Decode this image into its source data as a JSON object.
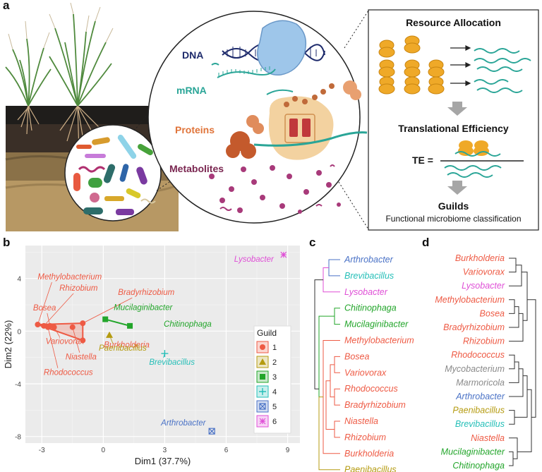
{
  "panels": {
    "a": "a",
    "b": "b",
    "c": "c",
    "d": "d"
  },
  "mechanism": {
    "dna": "DNA",
    "mrna": "mRNA",
    "proteins": "Proteins",
    "metabolites": "Metabolites"
  },
  "workflow": {
    "resource_allocation": "Resource Allocation",
    "translational_efficiency": "Translational Efficiency",
    "te_label": "TE =",
    "guilds": "Guilds",
    "guilds_subtitle": "Functional microbiome classification"
  },
  "colors": {
    "guild1": "#ee5a44",
    "guild2": "#b59b10",
    "guild3": "#22a52a",
    "guild4": "#25bfb8",
    "guild5": "#4a72c6",
    "guild6": "#df4fd6",
    "grey": "#8a8a8a",
    "dna": "#1d2a6b",
    "mrna": "#2aa597",
    "proteins": "#e0743a",
    "metabolites": "#7a2650"
  },
  "chart_data": {
    "type": "scatter",
    "xlabel": "Dim1 (37.7%)",
    "ylabel": "Dim2 (22%)",
    "xticks": [
      "-3",
      "0",
      "3",
      "6",
      "9"
    ],
    "yticks": [
      "4",
      "0",
      "-4",
      "-8"
    ],
    "xlim": [
      -3.8,
      9.6
    ],
    "ylim": [
      -8.5,
      6.5
    ],
    "legend_title": "Guild",
    "legend_position": "bottom-right",
    "grid": true,
    "guilds": [
      "1",
      "2",
      "3",
      "4",
      "5",
      "6"
    ],
    "points": [
      {
        "label": "Methylobacterium",
        "guild": 1,
        "x": -3.2,
        "y": 0.5
      },
      {
        "label": "Rhizobium",
        "guild": 1,
        "x": -2.9,
        "y": 0.4
      },
      {
        "label": "Bradyrhizobium",
        "guild": 1,
        "x": -1.0,
        "y": 0.6
      },
      {
        "label": "Bosea",
        "guild": 1,
        "x": -2.6,
        "y": 0.4
      },
      {
        "label": "Variovorax",
        "guild": 1,
        "x": -2.4,
        "y": 0.3
      },
      {
        "label": "Niastella",
        "guild": 1,
        "x": -1.5,
        "y": 0.3
      },
      {
        "label": "Rhodococcus",
        "guild": 1,
        "x": -2.7,
        "y": 0.3
      },
      {
        "label": "Burkholderia",
        "guild": 1,
        "x": -1.0,
        "y": -0.7
      },
      {
        "label": "Paenibacillus",
        "guild": 2,
        "x": 0.3,
        "y": -0.3
      },
      {
        "label": "Mucilaginibacter",
        "guild": 3,
        "x": 0.1,
        "y": 0.9
      },
      {
        "label": "Chitinophaga",
        "guild": 3,
        "x": 1.3,
        "y": 0.4
      },
      {
        "label": "Brevibacillus",
        "guild": 4,
        "x": 3.0,
        "y": -1.7
      },
      {
        "label": "Arthrobacter",
        "guild": 5,
        "x": 5.3,
        "y": -7.6
      },
      {
        "label": "Lysobacter",
        "guild": 6,
        "x": 8.8,
        "y": 5.8
      }
    ]
  },
  "tree_c": {
    "leaves": [
      {
        "name": "Arthrobacter",
        "guild": 5
      },
      {
        "name": "Brevibacillus",
        "guild": 4
      },
      {
        "name": "Lysobacter",
        "guild": 6
      },
      {
        "name": "Chitinophaga",
        "guild": 3
      },
      {
        "name": "Mucilaginibacter",
        "guild": 3
      },
      {
        "name": "Methylobacterium",
        "guild": 1
      },
      {
        "name": "Bosea",
        "guild": 1
      },
      {
        "name": "Variovorax",
        "guild": 1
      },
      {
        "name": "Rhodococcus",
        "guild": 1
      },
      {
        "name": "Bradyrhizobium",
        "guild": 1
      },
      {
        "name": "Niastella",
        "guild": 1
      },
      {
        "name": "Rhizobium",
        "guild": 1
      },
      {
        "name": "Burkholderia",
        "guild": 1
      },
      {
        "name": "Paenibacillus",
        "guild": 2
      }
    ]
  },
  "tree_d": {
    "leaves": [
      {
        "name": "Burkholderia",
        "guild": 1
      },
      {
        "name": "Variovorax",
        "guild": 1
      },
      {
        "name": "Lysobacter",
        "guild": 6
      },
      {
        "name": "Methylobacterium",
        "guild": 1
      },
      {
        "name": "Bosea",
        "guild": 1
      },
      {
        "name": "Bradyrhizobium",
        "guild": 1
      },
      {
        "name": "Rhizobium",
        "guild": 1
      },
      {
        "name": "Rhodococcus",
        "guild": 1
      },
      {
        "name": "Mycobacterium",
        "guild": 0
      },
      {
        "name": "Marmoricola",
        "guild": 0
      },
      {
        "name": "Arthrobacter",
        "guild": 5
      },
      {
        "name": "Paenibacillus",
        "guild": 2
      },
      {
        "name": "Brevibacillus",
        "guild": 4
      },
      {
        "name": "Niastella",
        "guild": 1
      },
      {
        "name": "Mucilaginibacter",
        "guild": 3
      },
      {
        "name": "Chitinophaga",
        "guild": 3
      }
    ]
  }
}
